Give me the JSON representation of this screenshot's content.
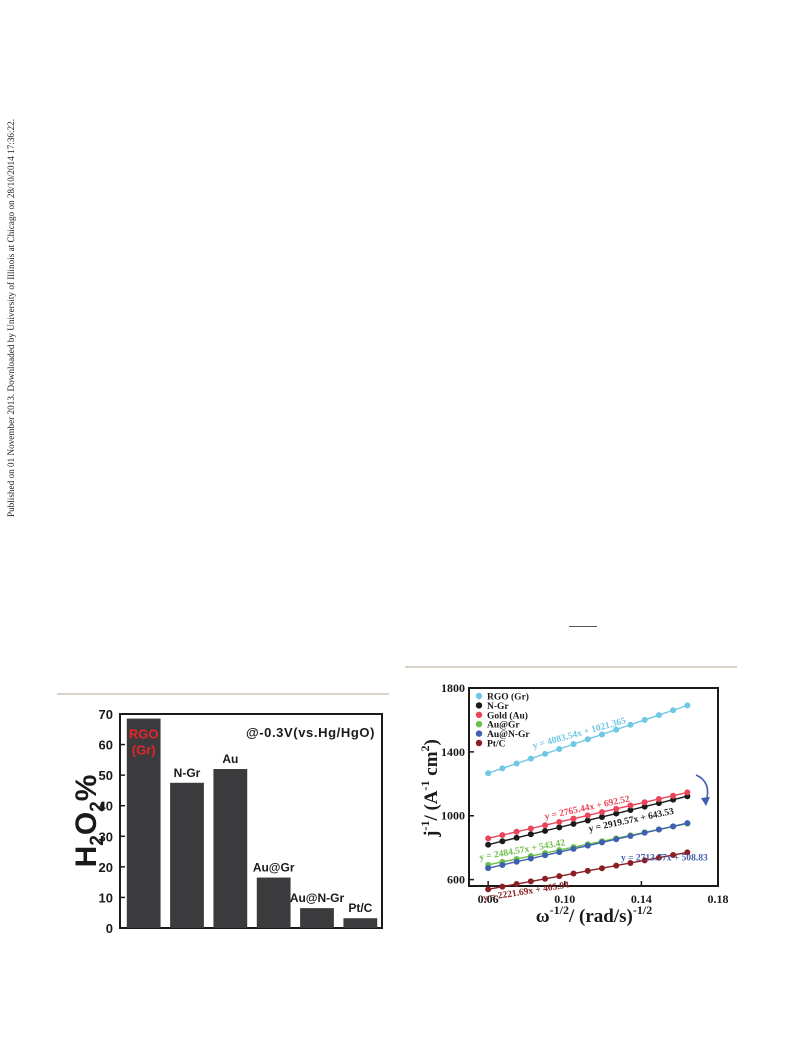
{
  "side_text": "Published on 01 November 2013. Downloaded by University of Illinois at Chicago on 28/10/2014 17:36:22.",
  "chart_data": [
    {
      "type": "bar",
      "ylabel_base": "H",
      "ylabel_sub": "2",
      "ylabel_mid": "O",
      "ylabel_sub2": "2",
      "ylabel_end": "%",
      "annotation": "@-0.3V(vs.Hg/HgO)",
      "ylim": [
        0,
        70
      ],
      "yticks": [
        "0",
        "10",
        "20",
        "30",
        "40",
        "50",
        "60",
        "70"
      ],
      "bar_color": "#3b3a3c",
      "highlight_color": "#e4262c",
      "bars": [
        {
          "label_line1": "RGO",
          "label_line2": "(Gr)",
          "value": 68.5,
          "label_inside": true
        },
        {
          "label_line1": "N-Gr",
          "label_line2": "",
          "value": 47.5,
          "label_inside": false
        },
        {
          "label_line1": "Au",
          "label_line2": "",
          "value": 52.0,
          "label_inside": false
        },
        {
          "label_line1": "Au@Gr",
          "label_line2": "",
          "value": 16.5,
          "label_inside": false
        },
        {
          "label_line1": "Au@N-Gr",
          "label_line2": "",
          "value": 6.5,
          "label_inside": false
        },
        {
          "label_line1": "Pt/C",
          "label_line2": "",
          "value": 3.2,
          "label_inside": false
        }
      ]
    },
    {
      "type": "scatter",
      "xlabel_base": "ω",
      "xlabel_sup": "-1/2",
      "xlabel_mid": "/ (rad/s)",
      "xlabel_sup2": "-1/2",
      "ylabel_base": "j",
      "ylabel_sup": "-1",
      "ylabel_mid": "/ (A",
      "ylabel_sup2": "-1",
      "ylabel_mid2": " cm",
      "ylabel_sup3": "2",
      "ylabel_end": ")",
      "xlim": [
        0.05,
        0.18
      ],
      "ylim": [
        560,
        1800
      ],
      "xticks": [
        {
          "v": 0.06,
          "t": "0.06"
        },
        {
          "v": 0.1,
          "t": "0.10"
        },
        {
          "v": 0.14,
          "t": "0.14"
        },
        {
          "v": 0.18,
          "t": "0.18"
        }
      ],
      "yticks": [
        {
          "v": 600,
          "t": "600"
        },
        {
          "v": 1000,
          "t": "1000"
        },
        {
          "v": 1400,
          "t": "1400"
        },
        {
          "v": 1800,
          "t": "1800"
        }
      ],
      "x_start": 0.06,
      "x_end": 0.164,
      "n_points": 15,
      "series": [
        {
          "name": "RGO (Gr)",
          "color": "#6fc8e3",
          "slope": 4083.54,
          "intercept": 1021.365,
          "equation": "y = 4083.54x + 1021.365"
        },
        {
          "name": "N-Gr",
          "color": "#1a1a1a",
          "slope": 2919.57,
          "intercept": 643.53,
          "equation": "y = 2919.57x + 643.53"
        },
        {
          "name": "Gold (Au)",
          "color": "#e8455a",
          "slope": 2765.44,
          "intercept": 692.52,
          "equation": "y = 2765.44x + 692.52"
        },
        {
          "name": "Au@Gr",
          "color": "#6cbf4a",
          "slope": 2484.57,
          "intercept": 543.42,
          "equation": "y = 2484.57x + 543.42"
        },
        {
          "name": "Au@N-Gr",
          "color": "#3f5fb0",
          "slope": 2713.77,
          "intercept": 508.83,
          "equation": "y = 2713.77x + 508.83"
        },
        {
          "name": "Pt/C",
          "color": "#8b1f24",
          "slope": 2221.69,
          "intercept": 405.94,
          "equation": "y = 2221.69x + 405.94"
        }
      ]
    }
  ]
}
